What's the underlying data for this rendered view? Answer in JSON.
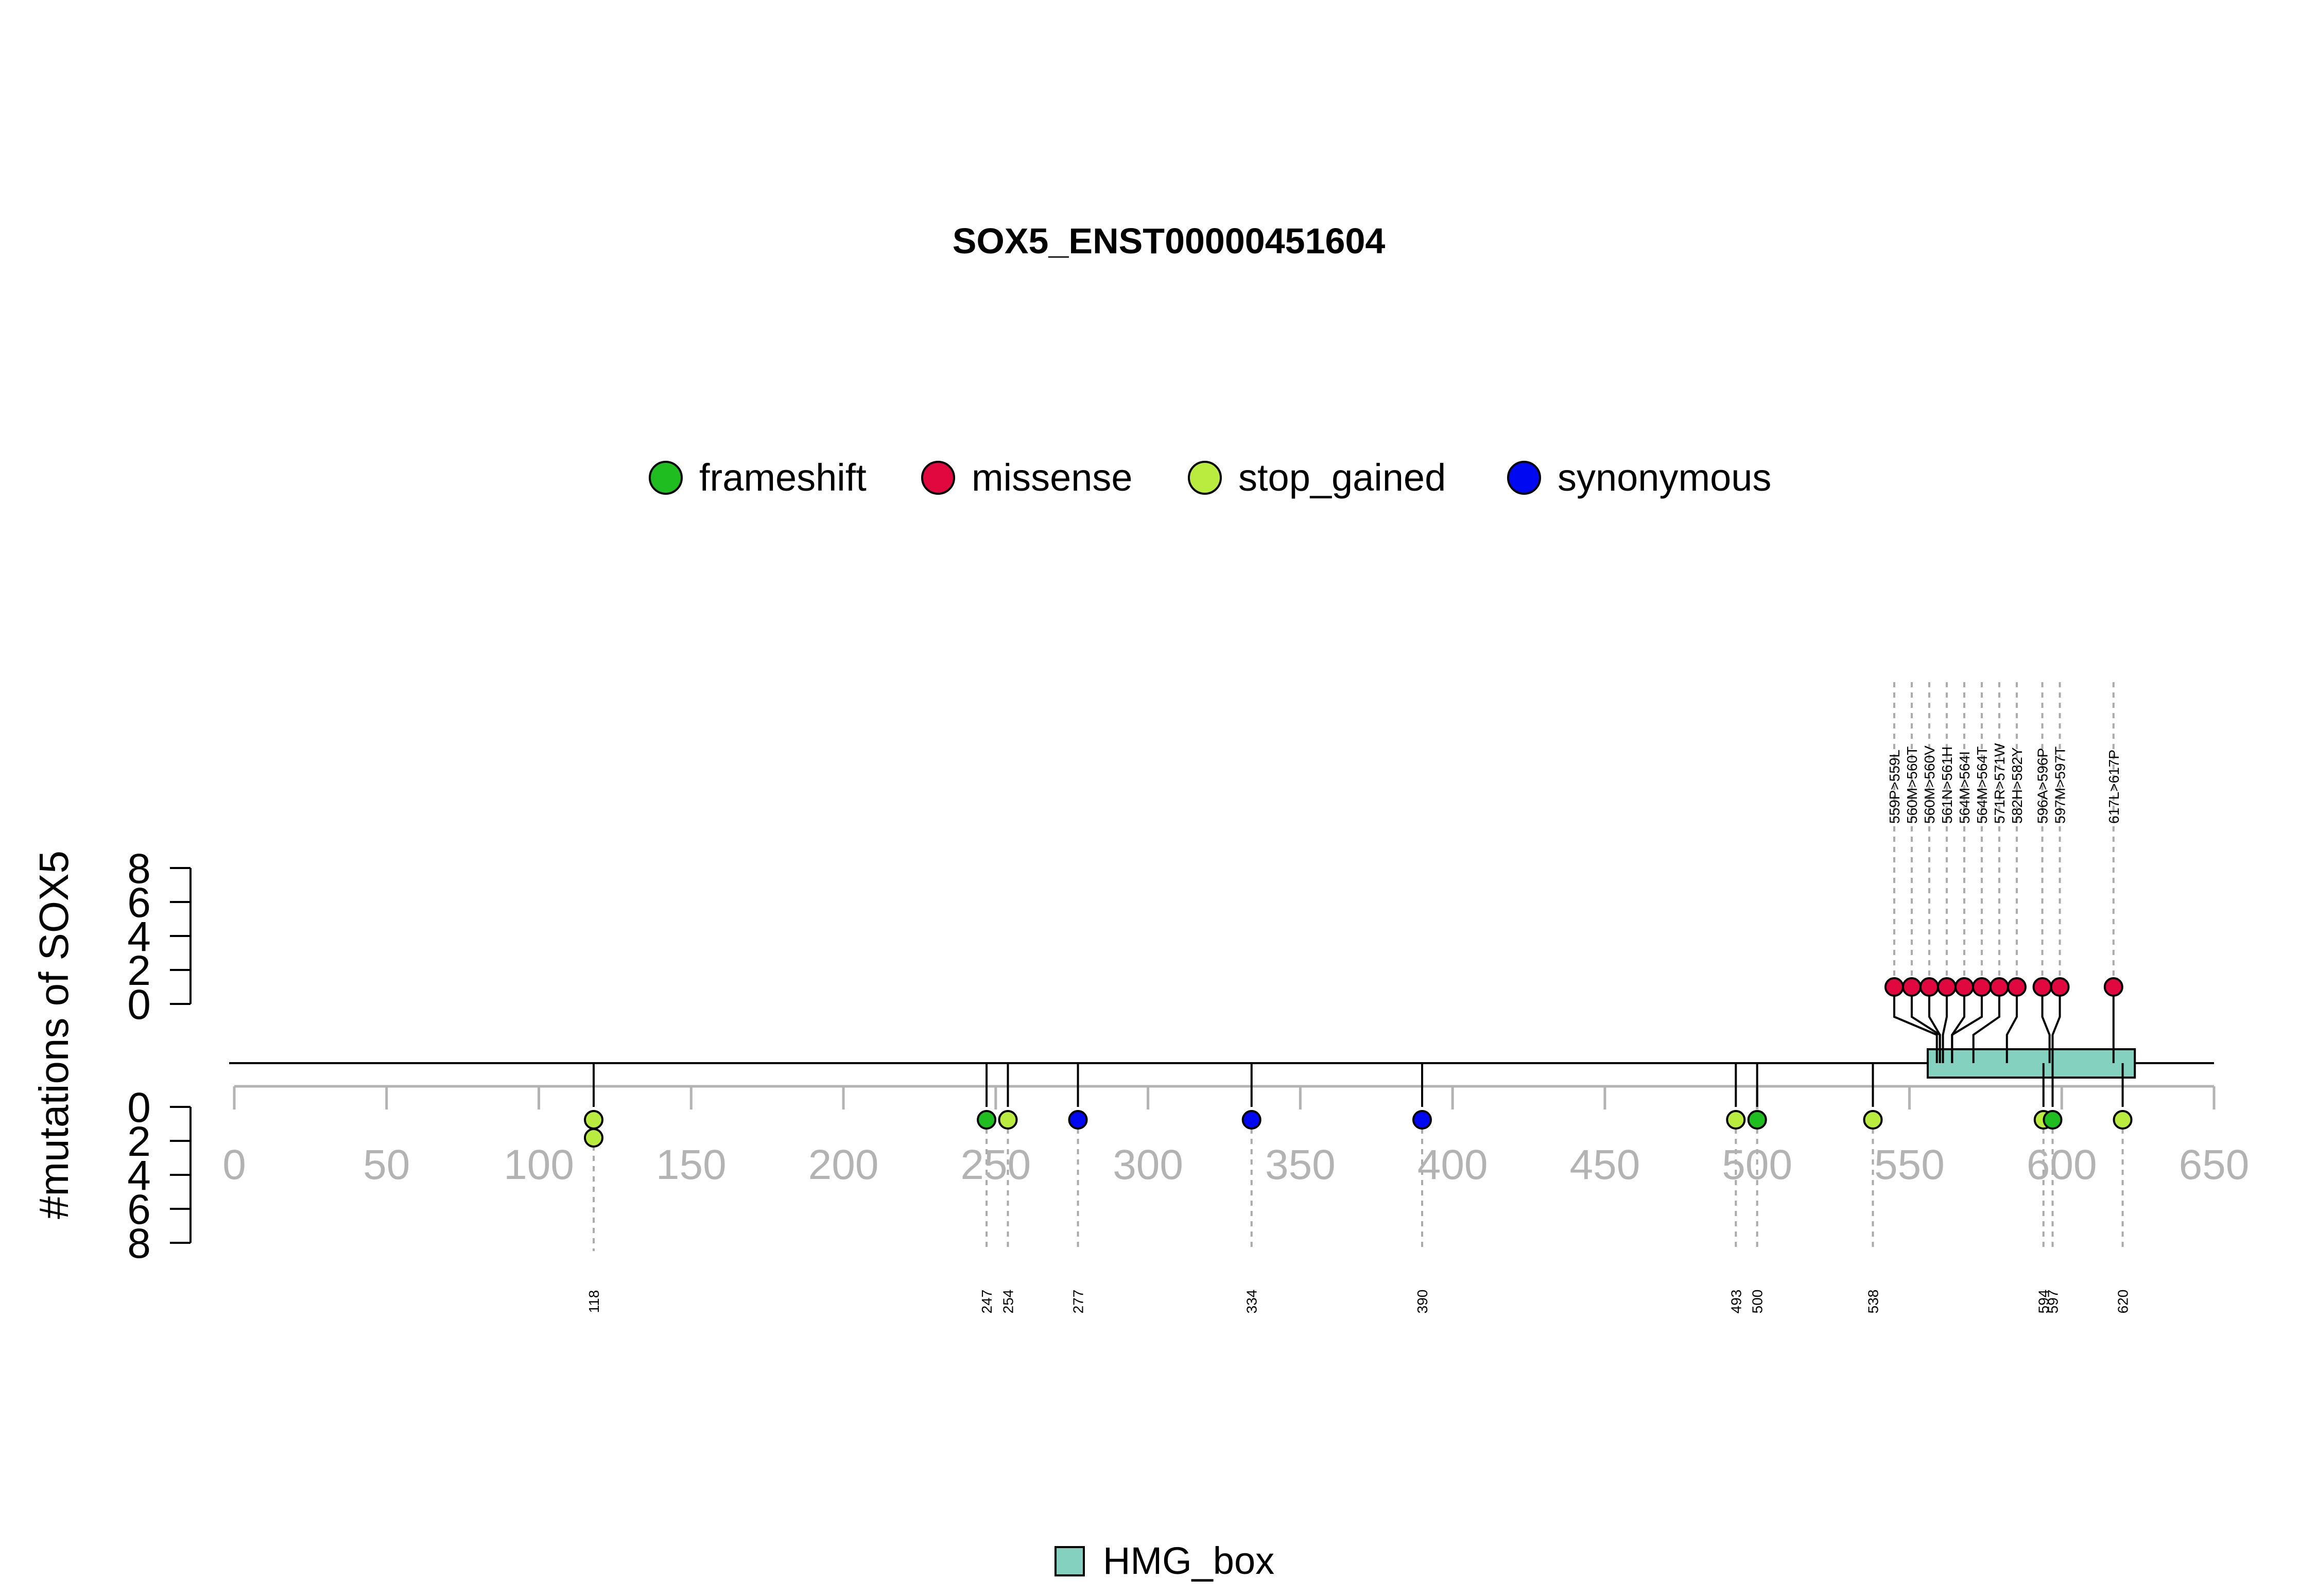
{
  "chart_data": {
    "type": "lollipop",
    "title": "SOX5_ENST00000451604",
    "ylabel": "#mutations of SOX5",
    "protein_length": 650,
    "xlim": [
      0,
      650
    ],
    "x_ticks": [
      0,
      50,
      100,
      150,
      200,
      250,
      300,
      350,
      400,
      450,
      500,
      550,
      600,
      650
    ],
    "y_ticks_top": [
      0,
      2,
      4,
      6,
      8
    ],
    "y_ticks_bottom": [
      0,
      2,
      4,
      6,
      8
    ],
    "ylim": [
      0,
      8
    ],
    "legend": [
      {
        "name": "frameshift",
        "color": "#1fbd1f"
      },
      {
        "name": "missense",
        "color": "#e0083e"
      },
      {
        "name": "stop_gained",
        "color": "#b9ec3f"
      },
      {
        "name": "synonymous",
        "color": "#0008f2"
      }
    ],
    "domains_legend": [
      {
        "name": "HMG_box",
        "color": "#84d1c0"
      }
    ],
    "domains": [
      {
        "name": "HMG_box",
        "start": 556,
        "end": 624,
        "color": "#84d1c0"
      }
    ],
    "top_mutations": [
      {
        "pos": 559,
        "label": "559P>559L",
        "count": 1,
        "type": "missense"
      },
      {
        "pos": 560,
        "label": "560M>560T",
        "count": 1,
        "type": "missense"
      },
      {
        "pos": 560,
        "label": "560M>560V",
        "count": 1,
        "type": "missense"
      },
      {
        "pos": 561,
        "label": "561N>561H",
        "count": 1,
        "type": "missense"
      },
      {
        "pos": 564,
        "label": "564M>564I",
        "count": 1,
        "type": "missense"
      },
      {
        "pos": 564,
        "label": "564M>564T",
        "count": 1,
        "type": "missense"
      },
      {
        "pos": 571,
        "label": "571R>571W",
        "count": 1,
        "type": "missense"
      },
      {
        "pos": 582,
        "label": "582H>582Y",
        "count": 1,
        "type": "missense"
      },
      {
        "pos": 596,
        "label": "596A>596P",
        "count": 1,
        "type": "missense"
      },
      {
        "pos": 597,
        "label": "597M>597T",
        "count": 1,
        "type": "missense"
      },
      {
        "pos": 617,
        "label": "617L>617P",
        "count": 1,
        "type": "missense"
      }
    ],
    "bottom_mutations": [
      {
        "pos": 118,
        "label": "118",
        "count": 2,
        "type": "stop_gained"
      },
      {
        "pos": 247,
        "label": "247",
        "count": 1,
        "type": "frameshift"
      },
      {
        "pos": 254,
        "label": "254",
        "count": 1,
        "type": "stop_gained"
      },
      {
        "pos": 277,
        "label": "277",
        "count": 1,
        "type": "synonymous"
      },
      {
        "pos": 334,
        "label": "334",
        "count": 1,
        "type": "synonymous"
      },
      {
        "pos": 390,
        "label": "390",
        "count": 1,
        "type": "synonymous"
      },
      {
        "pos": 493,
        "label": "493",
        "count": 1,
        "type": "stop_gained"
      },
      {
        "pos": 500,
        "label": "500",
        "count": 1,
        "type": "frameshift"
      },
      {
        "pos": 538,
        "label": "538",
        "count": 1,
        "type": "stop_gained"
      },
      {
        "pos": 594,
        "label": "594",
        "count": 1,
        "type": "stop_gained"
      },
      {
        "pos": 597,
        "label": "597",
        "count": 1,
        "type": "frameshift"
      },
      {
        "pos": 620,
        "label": "620",
        "count": 1,
        "type": "stop_gained"
      }
    ]
  }
}
